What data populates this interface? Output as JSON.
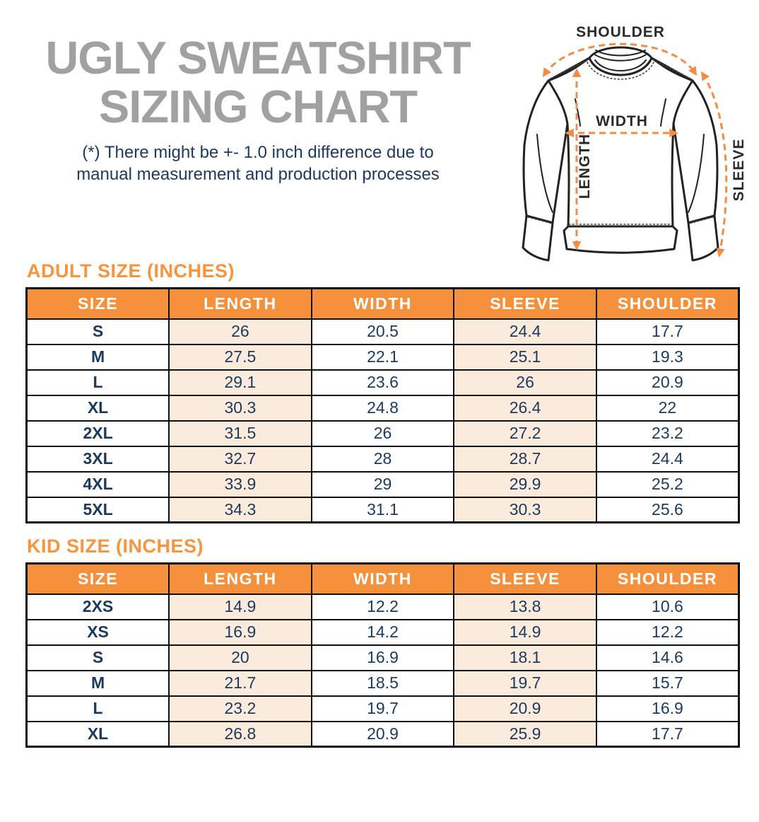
{
  "title": {
    "line1": "UGLY SWEATSHIRT",
    "line2": "SIZING CHART"
  },
  "disclaimer": {
    "line1": "(*) There might be +- 1.0 inch difference due to",
    "line2": "manual measurement and production processes"
  },
  "diagram": {
    "labels": {
      "shoulder": "SHOULDER",
      "width": "WIDTH",
      "length": "LENGTH",
      "sleeve": "SLEEVE"
    }
  },
  "adult_table": {
    "heading": "ADULT SIZE (INCHES)",
    "columns": [
      "SIZE",
      "LENGTH",
      "WIDTH",
      "SLEEVE",
      "SHOULDER"
    ],
    "rows": [
      [
        "S",
        "26",
        "20.5",
        "24.4",
        "17.7"
      ],
      [
        "M",
        "27.5",
        "22.1",
        "25.1",
        "19.3"
      ],
      [
        "L",
        "29.1",
        "23.6",
        "26",
        "20.9"
      ],
      [
        "XL",
        "30.3",
        "24.8",
        "26.4",
        "22"
      ],
      [
        "2XL",
        "31.5",
        "26",
        "27.2",
        "23.2"
      ],
      [
        "3XL",
        "32.7",
        "28",
        "28.7",
        "24.4"
      ],
      [
        "4XL",
        "33.9",
        "29",
        "29.9",
        "25.2"
      ],
      [
        "5XL",
        "34.3",
        "31.1",
        "30.3",
        "25.6"
      ]
    ]
  },
  "kid_table": {
    "heading": "KID SIZE (INCHES)",
    "columns": [
      "SIZE",
      "LENGTH",
      "WIDTH",
      "SLEEVE",
      "SHOULDER"
    ],
    "rows": [
      [
        "2XS",
        "14.9",
        "12.2",
        "13.8",
        "10.6"
      ],
      [
        "XS",
        "16.9",
        "14.2",
        "14.9",
        "12.2"
      ],
      [
        "S",
        "20",
        "16.9",
        "18.1",
        "14.6"
      ],
      [
        "M",
        "21.7",
        "18.5",
        "19.7",
        "15.7"
      ],
      [
        "L",
        "23.2",
        "19.7",
        "20.9",
        "16.9"
      ],
      [
        "XL",
        "26.8",
        "20.9",
        "25.9",
        "17.7"
      ]
    ]
  },
  "colors": {
    "header_orange": "#F5913C",
    "heading_orange": "#F6953E",
    "arrow_orange": "#F58C45",
    "highlight_peach": "#FBEBDC",
    "text_navy": "#1C3A5E",
    "title_gray": "#A1A1A1",
    "border_black": "#101010"
  }
}
